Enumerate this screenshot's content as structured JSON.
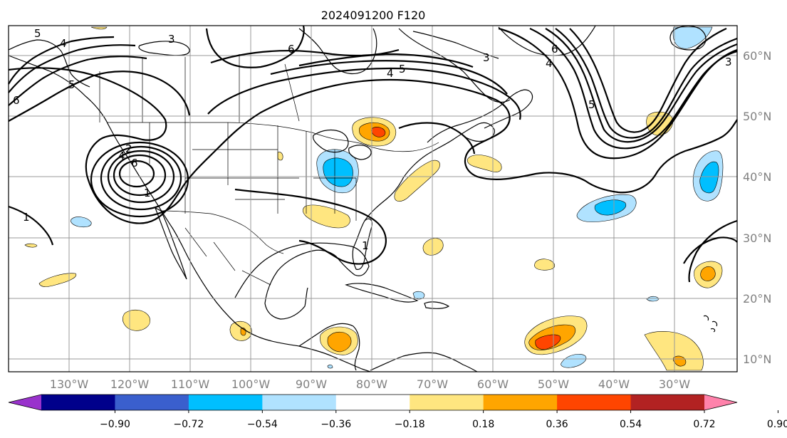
{
  "title": "2024091200 F120",
  "longitude_labels": [
    "130°W",
    "120°W",
    "110°W",
    "100°W",
    "90°W",
    "80°W",
    "70°W",
    "60°W",
    "50°W",
    "40°W",
    "30°W"
  ],
  "latitude_labels": [
    "60°N",
    "50°N",
    "40°N",
    "30°N",
    "20°N",
    "10°N"
  ],
  "contour_labels": [
    "5",
    "4",
    "3",
    "6",
    "5",
    "4",
    "3",
    "6",
    "4",
    "5",
    "3",
    "1",
    "4",
    "2",
    "6",
    "5",
    "6",
    "1",
    "1"
  ],
  "colorbar": {
    "tick_labels": [
      "−0.90",
      "−0.72",
      "−0.54",
      "−0.36",
      "−0.18",
      "0.18",
      "0.36",
      "0.54",
      "0.72",
      "0.90"
    ],
    "colors": [
      "#9932cc",
      "#00008b",
      "#3a5fcd",
      "#00bfff",
      "#b0e2ff",
      "#ffffff",
      "#ffe680",
      "#ffa500",
      "#ff4500",
      "#b22222",
      "#ff82ab"
    ]
  },
  "colors": {
    "coast": "#000000",
    "grid": "#999999",
    "axis_label": "#808080"
  }
}
